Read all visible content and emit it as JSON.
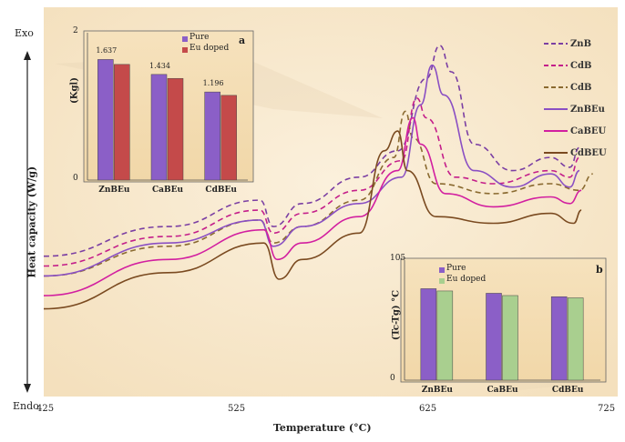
{
  "chart_data": [
    {
      "type": "line",
      "xlabel": "Temperature (°C)",
      "ylabel": "Heat capacity (W/g)",
      "y_top_label": "Exo",
      "y_bottom_label": "Endo",
      "x_ticks": [
        "425",
        "525",
        "625",
        "725"
      ],
      "xlim": [
        425,
        725
      ],
      "ylim": [
        0,
        100
      ],
      "legend_position": "top-right",
      "series": [
        {
          "name": "ZnB",
          "color": "#7b3fa3",
          "dash": true,
          "x": [
            425,
            490,
            538,
            545,
            560,
            590,
            610,
            625,
            632,
            638,
            650,
            670,
            690,
            700,
            705
          ],
          "y": [
            36,
            45,
            53,
            45,
            52,
            60,
            68,
            90,
            100,
            92,
            70,
            62,
            66,
            63,
            69
          ]
        },
        {
          "name": "CdB",
          "color": "#c41e8a",
          "dash": true,
          "x": [
            425,
            490,
            538,
            545,
            560,
            590,
            612,
            620,
            625,
            640,
            660,
            690,
            700,
            705
          ],
          "y": [
            33,
            42,
            50,
            43,
            49,
            56,
            65,
            84,
            78,
            60,
            58,
            62,
            60,
            66
          ]
        },
        {
          "name": "CdB",
          "color": "#8a6a30",
          "dash": true,
          "x": [
            425,
            490,
            538,
            545,
            560,
            590,
            608,
            614,
            618,
            630,
            660,
            690,
            705,
            712
          ],
          "y": [
            30,
            39,
            47,
            40,
            45,
            53,
            66,
            80,
            72,
            58,
            55,
            58,
            56,
            61
          ]
        },
        {
          "name": "ZnBEu",
          "color": "#8a4fc3",
          "dash": false,
          "x": [
            425,
            490,
            538,
            545,
            560,
            590,
            612,
            622,
            628,
            634,
            650,
            670,
            690,
            700,
            705
          ],
          "y": [
            30,
            40,
            47,
            39,
            45,
            52,
            60,
            82,
            94,
            85,
            62,
            57,
            61,
            57,
            62
          ]
        },
        {
          "name": "CaBEU",
          "color": "#d21fa0",
          "dash": false,
          "x": [
            425,
            490,
            540,
            547,
            560,
            590,
            610,
            618,
            622,
            635,
            660,
            690,
            700,
            706
          ],
          "y": [
            24,
            35,
            44,
            35,
            40,
            48,
            62,
            78,
            70,
            55,
            51,
            54,
            52,
            56
          ]
        },
        {
          "name": "CdBEU",
          "color": "#7a4a20",
          "dash": false,
          "x": [
            425,
            490,
            540,
            548,
            560,
            590,
            603,
            610,
            615,
            630,
            660,
            690,
            702,
            706
          ],
          "y": [
            20,
            31,
            40,
            29,
            35,
            43,
            68,
            74,
            62,
            48,
            46,
            49,
            46,
            50
          ]
        }
      ]
    },
    {
      "type": "bar",
      "panel_label": "a",
      "ylabel": "(Kgl)",
      "ylim": [
        0,
        2
      ],
      "y_ticks": [
        "0",
        "2"
      ],
      "categories": [
        "ZnBEu",
        "CaBEu",
        "CdBEu"
      ],
      "series": [
        {
          "name": "Pure",
          "color": "#8b5fc7",
          "values": [
            1.637,
            1.434,
            1.196
          ]
        },
        {
          "name": "Eu doped",
          "color": "#c44a4a",
          "values": [
            1.57,
            1.38,
            1.15
          ]
        }
      ],
      "data_labels": [
        "1.637",
        "1.434",
        "1.196"
      ]
    },
    {
      "type": "bar",
      "panel_label": "b",
      "ylabel": "(Tc-Tg) °C",
      "ylim": [
        0,
        105
      ],
      "y_ticks": [
        "0",
        "105"
      ],
      "categories": [
        "ZnBEu",
        "CaBEu",
        "CdBEu"
      ],
      "series": [
        {
          "name": "Pure",
          "color": "#8b5fc7",
          "values": [
            80,
            76,
            73
          ]
        },
        {
          "name": "Eu doped",
          "color": "#a9cf8f",
          "values": [
            78,
            74,
            72
          ]
        }
      ]
    }
  ]
}
